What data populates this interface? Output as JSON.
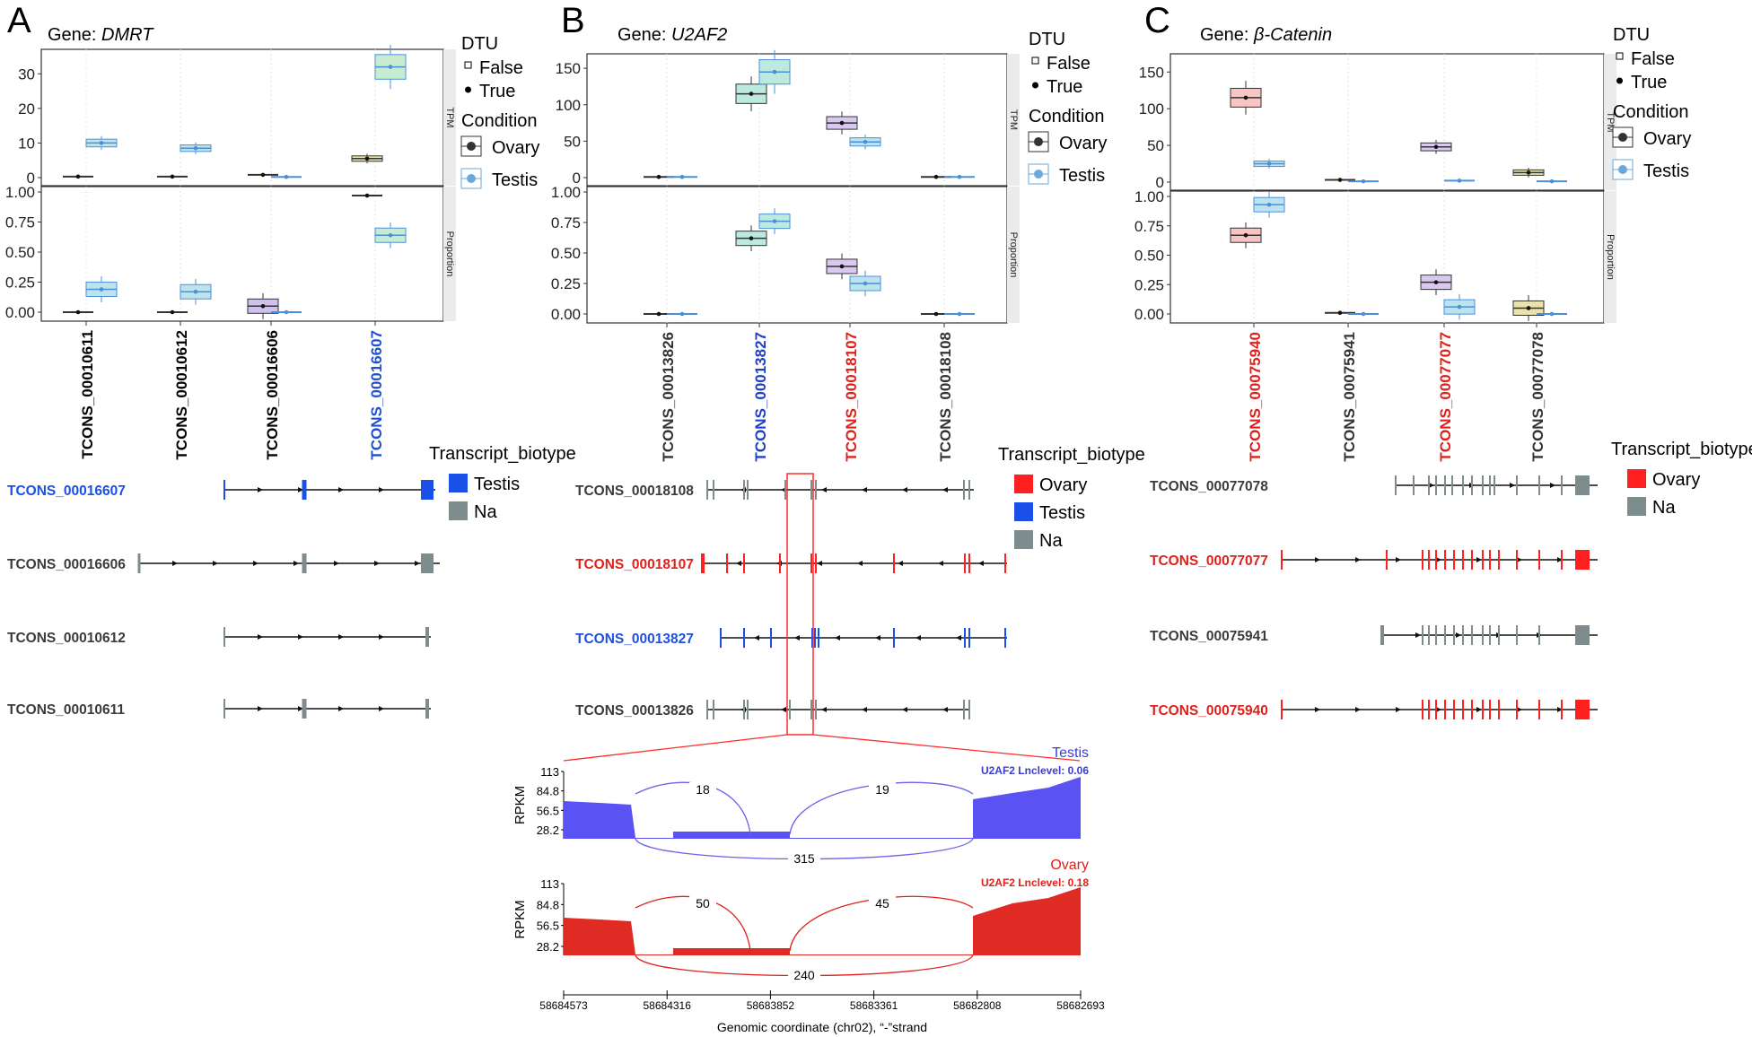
{
  "panels": [
    {
      "letter": "A",
      "gene_prefix": "Gene: ",
      "gene": "DMRT",
      "x_labels": [
        "TCONS_00010611",
        "TCONS_00010612",
        "TCONS_00016606",
        "TCONS_00016607"
      ],
      "x_label_colors": [
        "#000000",
        "#000000",
        "#000000",
        "#1f4fcf"
      ],
      "tpm_ticks": [
        "0",
        "10",
        "20",
        "30"
      ],
      "prop_ticks": [
        "0.00",
        "0.25",
        "0.50",
        "0.75",
        "1.00"
      ],
      "strip_top": "TPM",
      "strip_bottom": "Proportion",
      "tpm": {
        "ovary": [
          0.3,
          0.3,
          0.8,
          5.5
        ],
        "testis": [
          10,
          8.5,
          0.2,
          32
        ]
      },
      "prop": {
        "ovary": [
          0.0,
          0.0,
          0.05,
          0.97
        ],
        "testis": [
          0.19,
          0.17,
          0.0,
          0.64
        ]
      },
      "legend_biotype": {
        "title": "Transcript_biotype",
        "items": [
          {
            "label": "Testis",
            "color": "#1a4fe8"
          },
          {
            "label": "Na",
            "color": "#7f8c8d"
          }
        ]
      },
      "transcripts": [
        {
          "id": "TCONS_00016607",
          "color": "#1a4fe8"
        },
        {
          "id": "TCONS_00016606",
          "color": "#3b3b3b"
        },
        {
          "id": "TCONS_00010612",
          "color": "#3b3b3b"
        },
        {
          "id": "TCONS_00010611",
          "color": "#3b3b3b"
        }
      ]
    },
    {
      "letter": "B",
      "gene_prefix": "Gene: ",
      "gene": "U2AF2",
      "x_labels": [
        "TCONS_00013826",
        "TCONS_00013827",
        "TCONS_00018107",
        "TCONS_00018108"
      ],
      "x_label_colors": [
        "#333333",
        "#1f3fc8",
        "#e0201a",
        "#333333"
      ],
      "tpm_ticks": [
        "0",
        "50",
        "100",
        "150"
      ],
      "prop_ticks": [
        "0.00",
        "0.25",
        "0.50",
        "0.75",
        "1.00"
      ],
      "strip_top": "TPM",
      "strip_bottom": "Proportion",
      "tpm": {
        "ovary": [
          1,
          115,
          75,
          1
        ],
        "testis": [
          1,
          145,
          49,
          1
        ]
      },
      "prop": {
        "ovary": [
          0.0,
          0.62,
          0.39,
          0.0
        ],
        "testis": [
          0.0,
          0.76,
          0.25,
          0.0
        ]
      },
      "legend_biotype": {
        "title": "Transcript_biotype",
        "items": [
          {
            "label": "Ovary",
            "color": "#ff1f1f"
          },
          {
            "label": "Testis",
            "color": "#1a4fe8"
          },
          {
            "label": "Na",
            "color": "#7f8c8d"
          }
        ]
      },
      "transcripts": [
        {
          "id": "TCONS_00018108",
          "color": "#3b3b3b"
        },
        {
          "id": "TCONS_00018107",
          "color": "#e0201a"
        },
        {
          "id": "TCONS_00013827",
          "color": "#1f4fe0"
        },
        {
          "id": "TCONS_00013826",
          "color": "#3b3b3b"
        }
      ]
    },
    {
      "letter": "C",
      "gene_prefix": "Gene: ",
      "gene": "β-Catenin",
      "x_labels": [
        "TCONS_00075940",
        "TCONS_00075941",
        "TCONS_00077077",
        "TCONS_00077078"
      ],
      "x_label_colors": [
        "#e0201a",
        "#333333",
        "#e0201a",
        "#333333"
      ],
      "tpm_ticks": [
        "0",
        "50",
        "100",
        "150"
      ],
      "prop_ticks": [
        "0.00",
        "0.25",
        "0.50",
        "0.75",
        "1.00"
      ],
      "strip_top": "TPM",
      "strip_bottom": "Proportion",
      "tpm": {
        "ovary": [
          115,
          3,
          48,
          13
        ],
        "testis": [
          25,
          1,
          2,
          1
        ]
      },
      "prop": {
        "ovary": [
          0.67,
          0.01,
          0.27,
          0.05
        ],
        "testis": [
          0.93,
          0.0,
          0.06,
          0.0
        ]
      },
      "legend_biotype": {
        "title": "Transcript_biotype",
        "items": [
          {
            "label": "Ovary",
            "color": "#ff1f1f"
          },
          {
            "label": "Na",
            "color": "#7f8c8d"
          }
        ]
      },
      "transcripts": [
        {
          "id": "TCONS_00077078",
          "color": "#3b3b3b"
        },
        {
          "id": "TCONS_00077077",
          "color": "#e0201a"
        },
        {
          "id": "TCONS_00075941",
          "color": "#3b3b3b"
        },
        {
          "id": "TCONS_00075940",
          "color": "#e0201a"
        }
      ]
    }
  ],
  "legend": {
    "dtu_title": "DTU",
    "dtu_false": "False",
    "dtu_true": "True",
    "cond_title": "Condition",
    "cond_ovary": "Ovary",
    "cond_testis": "Testis"
  },
  "sashimi": {
    "tracks": [
      {
        "name": "Testis",
        "name_color": "#3b3bd6",
        "level": "U2AF2 Lnclevel: 0.06",
        "fill": "#5a52f2",
        "arc_color": "#6a62e8",
        "junctions": {
          "a": "18",
          "b": "19",
          "c": "315"
        }
      },
      {
        "name": "Ovary",
        "name_color": "#e0201a",
        "level": "U2AF2 Lnclevel: 0.18",
        "fill": "#e02a24",
        "arc_color": "#e0201a",
        "junctions": {
          "a": "50",
          "b": "45",
          "c": "240"
        }
      }
    ],
    "y_ticks": [
      "113",
      "84.8",
      "56.5",
      "28.2"
    ],
    "ylabel": "RPKM",
    "x_ticks": [
      "58684573",
      "58684316",
      "58683852",
      "58683361",
      "58682808",
      "58682693"
    ],
    "xlabel": "Genomic coordinate (chr02), “-”strand"
  },
  "colors": {
    "ovary_box": [
      "#f8c4c4",
      "#f8c4c4",
      "#cfc1ea",
      "#e9e2ae"
    ],
    "testis_box": [
      "#bdeadf"
    ]
  }
}
